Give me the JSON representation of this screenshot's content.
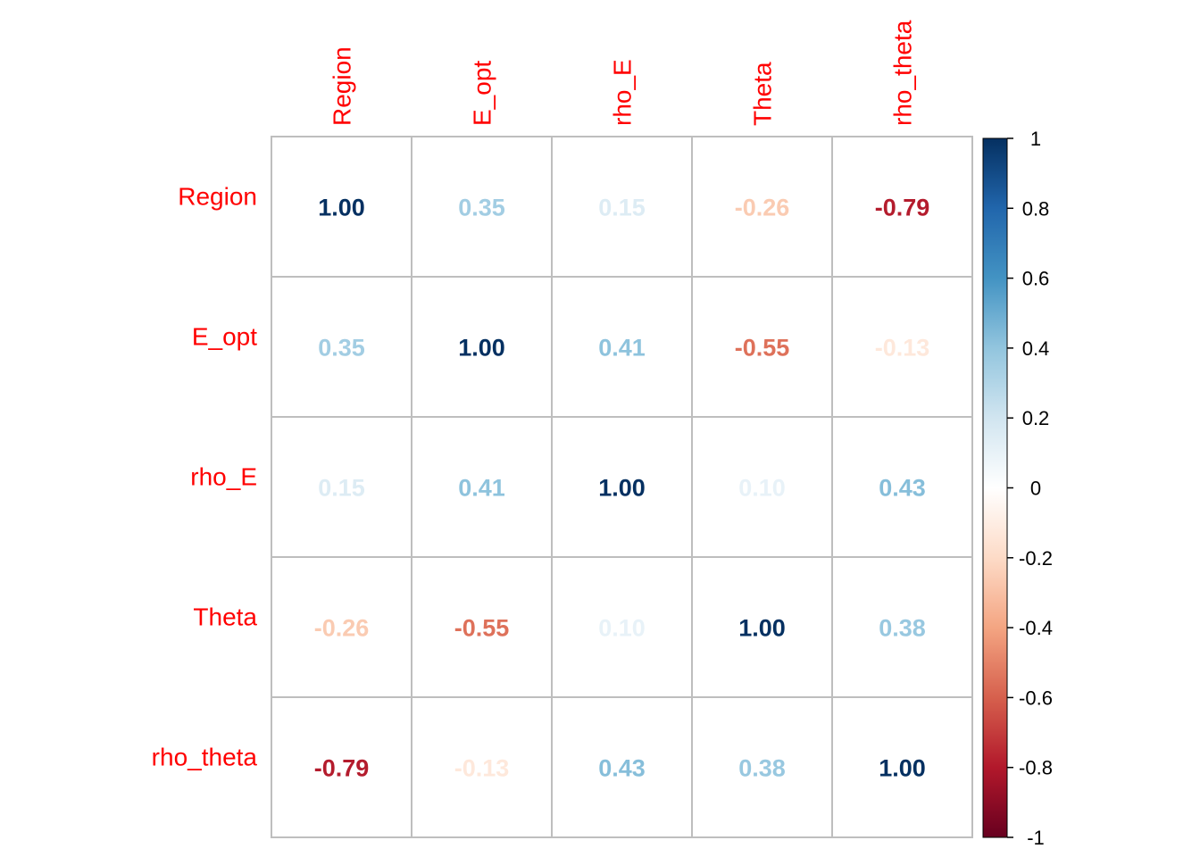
{
  "chart_data": {
    "type": "heatmap",
    "variables": [
      "Region",
      "E_opt",
      "rho_E",
      "Theta",
      "rho_theta"
    ],
    "matrix": [
      [
        1.0,
        0.35,
        0.15,
        -0.26,
        -0.79
      ],
      [
        0.35,
        1.0,
        0.41,
        -0.55,
        -0.13
      ],
      [
        0.15,
        0.41,
        1.0,
        0.1,
        0.43
      ],
      [
        -0.26,
        -0.55,
        0.1,
        1.0,
        0.38
      ],
      [
        -0.79,
        -0.13,
        0.43,
        0.38,
        1.0
      ]
    ],
    "value_format": "0.00",
    "colorbar": {
      "range": [
        -1,
        1
      ],
      "ticks": [
        1,
        0.8,
        0.6,
        0.4,
        0.2,
        0,
        -0.2,
        -0.4,
        -0.6,
        -0.8,
        -1
      ],
      "tick_labels": [
        "1",
        "0.8",
        "0.6",
        "0.4",
        "0.2",
        "0",
        "-0.2",
        "-0.4",
        "-0.6",
        "-0.8",
        "-1"
      ],
      "palette": [
        "#67001F",
        "#B2182B",
        "#D6604D",
        "#F4A582",
        "#FDDBC7",
        "#FFFFFF",
        "#D1E5F0",
        "#92C5DE",
        "#4393C3",
        "#2166AC",
        "#053061"
      ]
    },
    "label_color": "#FF0000",
    "grid_color": "#BEBEBE",
    "grid": true,
    "legend_position": "right"
  }
}
